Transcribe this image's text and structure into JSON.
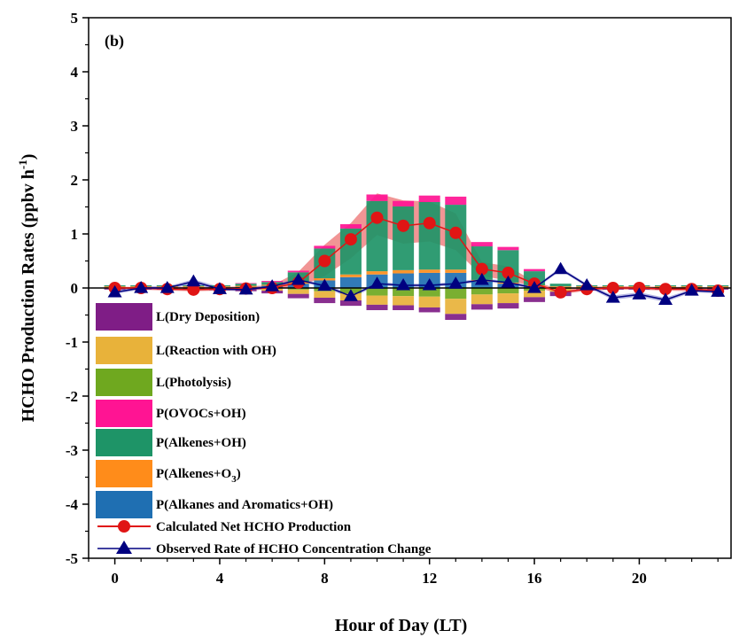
{
  "chart_data": {
    "type": "bar",
    "panel_label": "(b)",
    "xlabel": "Hour of Day (LT)",
    "ylabel": "HCHO Production Rates (ppbv h",
    "ylabel_superscript": "-1",
    "ylabel_suffix": ")",
    "xlim": [
      -1,
      23.5
    ],
    "ylim": [
      -5,
      5
    ],
    "xticks": [
      "0",
      "4",
      "8",
      "12",
      "16",
      "20"
    ],
    "xtick_values": [
      0,
      4,
      8,
      12,
      16,
      20
    ],
    "yticks": [
      "-5",
      "-4",
      "-3",
      "-2",
      "-1",
      "0",
      "1",
      "2",
      "3",
      "4",
      "5"
    ],
    "ytick_values": [
      -5,
      -4,
      -3,
      -2,
      -1,
      0,
      1,
      2,
      3,
      4,
      5
    ],
    "x": [
      0,
      1,
      2,
      3,
      4,
      5,
      6,
      7,
      8,
      9,
      10,
      11,
      12,
      13,
      14,
      15,
      16,
      17,
      18,
      19,
      20,
      21,
      22,
      23
    ],
    "stacked_series": [
      {
        "name": "P(Alkanes and Aromatics+OH)",
        "color": "#1f6fb2",
        "sign": "positive",
        "values": [
          0.01,
          0.01,
          0.01,
          0.01,
          0.01,
          0.02,
          0.04,
          0.08,
          0.14,
          0.2,
          0.25,
          0.27,
          0.28,
          0.28,
          0.12,
          0.08,
          0.03,
          0.01,
          0.01,
          0.01,
          0.01,
          0.01,
          0.01,
          0.01
        ]
      },
      {
        "name": "P(Alkenes+O3)",
        "color": "#ff8c1a",
        "sign": "positive",
        "values": [
          0.02,
          0.02,
          0.02,
          0.02,
          0.02,
          0.02,
          0.02,
          0.03,
          0.04,
          0.05,
          0.06,
          0.06,
          0.06,
          0.06,
          0.03,
          0.02,
          0.02,
          0.02,
          0.02,
          0.02,
          0.02,
          0.02,
          0.02,
          0.02
        ]
      },
      {
        "name": "P(Alkenes+OH)",
        "color": "#1e9467",
        "sign": "positive",
        "values": [
          0.02,
          0.02,
          0.02,
          0.02,
          0.02,
          0.04,
          0.05,
          0.18,
          0.55,
          0.85,
          1.3,
          1.18,
          1.25,
          1.2,
          0.62,
          0.6,
          0.26,
          0.05,
          0.02,
          0.02,
          0.02,
          0.02,
          0.02,
          0.02
        ]
      },
      {
        "name": "P(OVOCs+OH)",
        "color": "#ff1493",
        "sign": "positive",
        "values": [
          0.0,
          0.0,
          0.0,
          0.0,
          0.0,
          0.01,
          0.02,
          0.03,
          0.05,
          0.08,
          0.12,
          0.1,
          0.12,
          0.15,
          0.08,
          0.06,
          0.04,
          0.0,
          0.0,
          0.0,
          0.0,
          0.0,
          0.0,
          0.0
        ]
      },
      {
        "name": "L(Photolysis)",
        "color": "#6fa81f",
        "sign": "negative",
        "values": [
          0.0,
          0.0,
          0.0,
          0.0,
          0.0,
          0.0,
          -0.01,
          -0.03,
          -0.06,
          -0.1,
          -0.14,
          -0.15,
          -0.16,
          -0.2,
          -0.12,
          -0.1,
          -0.05,
          -0.02,
          0.0,
          0.0,
          0.0,
          0.0,
          0.0,
          0.0
        ]
      },
      {
        "name": "L(Reaction with OH)",
        "color": "#e8b23a",
        "sign": "negative",
        "values": [
          -0.01,
          -0.01,
          -0.01,
          -0.01,
          -0.01,
          -0.02,
          -0.04,
          -0.08,
          -0.12,
          -0.13,
          -0.17,
          -0.17,
          -0.2,
          -0.28,
          -0.18,
          -0.18,
          -0.12,
          -0.05,
          -0.02,
          -0.01,
          -0.01,
          -0.01,
          -0.01,
          -0.01
        ]
      },
      {
        "name": "L(Dry Deposition)",
        "color": "#7f1d86",
        "sign": "negative",
        "values": [
          -0.02,
          -0.02,
          -0.02,
          -0.02,
          -0.03,
          -0.04,
          -0.05,
          -0.08,
          -0.1,
          -0.1,
          -0.1,
          -0.09,
          -0.09,
          -0.11,
          -0.1,
          -0.1,
          -0.09,
          -0.08,
          -0.03,
          -0.02,
          -0.02,
          -0.02,
          -0.02,
          -0.02
        ]
      }
    ],
    "line_series": [
      {
        "name": "Calculated Net HCHO Production",
        "color": "#e01515",
        "marker": "circle",
        "values": [
          0.0,
          0.0,
          -0.02,
          -0.03,
          -0.02,
          -0.01,
          0.0,
          0.1,
          0.5,
          0.9,
          1.3,
          1.15,
          1.2,
          1.02,
          0.35,
          0.28,
          0.08,
          -0.08,
          -0.02,
          0.0,
          0.0,
          -0.02,
          -0.02,
          -0.05
        ],
        "band_upper": [
          0.02,
          0.02,
          0.02,
          0.02,
          0.02,
          0.03,
          0.05,
          0.3,
          0.8,
          1.2,
          1.75,
          1.62,
          1.6,
          1.38,
          0.48,
          0.4,
          0.12,
          -0.03,
          0.02,
          0.03,
          0.03,
          0.02,
          0.02,
          0.0
        ],
        "band_lower": [
          -0.02,
          -0.03,
          -0.05,
          -0.06,
          -0.05,
          -0.04,
          -0.03,
          0.02,
          0.22,
          0.55,
          0.98,
          0.82,
          0.86,
          0.7,
          0.22,
          0.14,
          0.03,
          -0.12,
          -0.05,
          -0.03,
          -0.03,
          -0.05,
          -0.06,
          -0.08
        ]
      },
      {
        "name": "Observed Rate of HCHO Concentration Change",
        "color": "#000080",
        "marker": "triangle",
        "values": [
          -0.08,
          0.0,
          0.0,
          0.12,
          -0.02,
          -0.03,
          0.03,
          0.15,
          0.04,
          -0.15,
          0.08,
          0.05,
          0.05,
          0.08,
          0.15,
          0.1,
          0.0,
          0.35,
          0.05,
          -0.18,
          -0.12,
          -0.22,
          -0.05,
          -0.07
        ],
        "band_upper": [
          -0.05,
          0.03,
          0.03,
          0.16,
          0.02,
          0.0,
          0.06,
          0.18,
          0.07,
          -0.11,
          0.11,
          0.08,
          0.08,
          0.11,
          0.18,
          0.13,
          0.03,
          0.38,
          0.08,
          -0.14,
          -0.08,
          -0.18,
          -0.02,
          -0.04
        ],
        "band_lower": [
          -0.11,
          -0.03,
          -0.03,
          0.08,
          -0.05,
          -0.06,
          0.0,
          0.12,
          0.01,
          -0.19,
          0.05,
          0.02,
          0.02,
          0.05,
          0.12,
          0.07,
          -0.03,
          0.32,
          0.02,
          -0.22,
          -0.16,
          -0.26,
          -0.08,
          -0.1
        ]
      }
    ],
    "legend": {
      "placement": "bottom-left",
      "items": [
        {
          "label": "L(Dry Deposition)",
          "kind": "box",
          "color": "#7f1d86"
        },
        {
          "label": "L(Reaction with OH)",
          "kind": "box",
          "color": "#e8b23a"
        },
        {
          "label": "L(Photolysis)",
          "kind": "box",
          "color": "#6fa81f"
        },
        {
          "label": "P(OVOCs+OH)",
          "kind": "box",
          "color": "#ff1493"
        },
        {
          "label": "P(Alkenes+OH)",
          "kind": "box",
          "color": "#1e9467"
        },
        {
          "label": "P(Alkenes+O",
          "sub": "3",
          "suffix": ")",
          "kind": "box",
          "color": "#ff8c1a"
        },
        {
          "label": "P(Alkanes and Aromatics+OH)",
          "kind": "box",
          "color": "#1f6fb2"
        },
        {
          "label": "Calculated Net HCHO Production",
          "kind": "line-circle",
          "color": "#e01515"
        },
        {
          "label": "Observed Rate of HCHO Concentration Change",
          "kind": "line-triangle",
          "color": "#000080"
        }
      ]
    }
  }
}
